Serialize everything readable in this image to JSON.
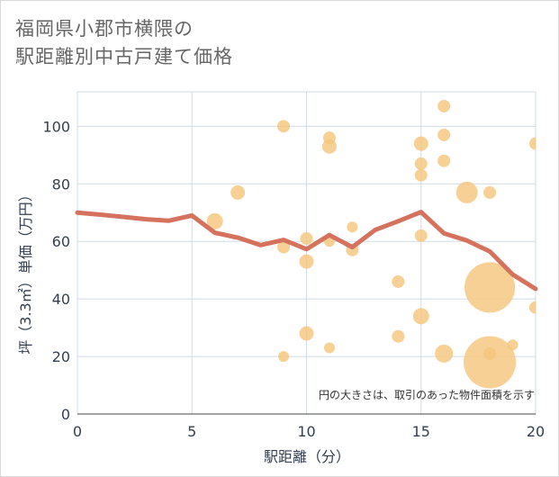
{
  "title_line1": "福岡県小郡市横隈の",
  "title_line2": "駅距離別中古戸建て価格",
  "chart_data": {
    "type": "scatter",
    "xlabel": "駅距離（分）",
    "ylabel": "坪（3.3㎡）単価（万円）",
    "xlim": [
      0,
      20
    ],
    "ylim": [
      0,
      112
    ],
    "xticks": [
      0,
      5,
      10,
      15,
      20
    ],
    "yticks": [
      0,
      20,
      40,
      60,
      80,
      100
    ],
    "note": "円の大きさは、取引のあった物件面積を示す",
    "colors": {
      "bubble": "#f5c47a",
      "line": "#d4725e",
      "grid": "#d0dbe6"
    },
    "bubbles": [
      {
        "x": 6,
        "y": 67,
        "s": 9
      },
      {
        "x": 7,
        "y": 77,
        "s": 8
      },
      {
        "x": 9,
        "y": 100,
        "s": 7
      },
      {
        "x": 9,
        "y": 58,
        "s": 7
      },
      {
        "x": 9,
        "y": 20,
        "s": 6
      },
      {
        "x": 10,
        "y": 61,
        "s": 7
      },
      {
        "x": 10,
        "y": 53,
        "s": 8
      },
      {
        "x": 10,
        "y": 28,
        "s": 8
      },
      {
        "x": 11,
        "y": 96,
        "s": 7
      },
      {
        "x": 11,
        "y": 93,
        "s": 8
      },
      {
        "x": 11,
        "y": 60,
        "s": 6
      },
      {
        "x": 11,
        "y": 23,
        "s": 6
      },
      {
        "x": 12,
        "y": 65,
        "s": 6
      },
      {
        "x": 12,
        "y": 57,
        "s": 7
      },
      {
        "x": 14,
        "y": 46,
        "s": 7
      },
      {
        "x": 14,
        "y": 27,
        "s": 7
      },
      {
        "x": 15,
        "y": 94,
        "s": 8
      },
      {
        "x": 15,
        "y": 87,
        "s": 7
      },
      {
        "x": 15,
        "y": 83,
        "s": 7
      },
      {
        "x": 15,
        "y": 62,
        "s": 7
      },
      {
        "x": 15,
        "y": 34,
        "s": 9
      },
      {
        "x": 16,
        "y": 107,
        "s": 7
      },
      {
        "x": 16,
        "y": 97,
        "s": 7
      },
      {
        "x": 16,
        "y": 88,
        "s": 7
      },
      {
        "x": 16,
        "y": 21,
        "s": 10
      },
      {
        "x": 17,
        "y": 77,
        "s": 12
      },
      {
        "x": 18,
        "y": 77,
        "s": 7
      },
      {
        "x": 18,
        "y": 44,
        "s": 28
      },
      {
        "x": 18,
        "y": 21,
        "s": 7
      },
      {
        "x": 18,
        "y": 18,
        "s": 29
      },
      {
        "x": 19,
        "y": 24,
        "s": 6
      },
      {
        "x": 20,
        "y": 94,
        "s": 7
      },
      {
        "x": 20,
        "y": 37,
        "s": 7
      }
    ],
    "line": {
      "x": [
        0,
        1,
        2,
        3,
        4,
        5,
        6,
        7,
        8,
        9,
        10,
        11,
        12,
        13,
        14,
        15,
        16,
        17,
        18,
        19,
        20
      ],
      "y": [
        70,
        69.3,
        68.5,
        67.7,
        67.2,
        69,
        63,
        61.3,
        58.7,
        60.5,
        57.3,
        62.2,
        58,
        64,
        67,
        70.2,
        62.8,
        60.3,
        56.5,
        48.5,
        43.5
      ]
    }
  }
}
